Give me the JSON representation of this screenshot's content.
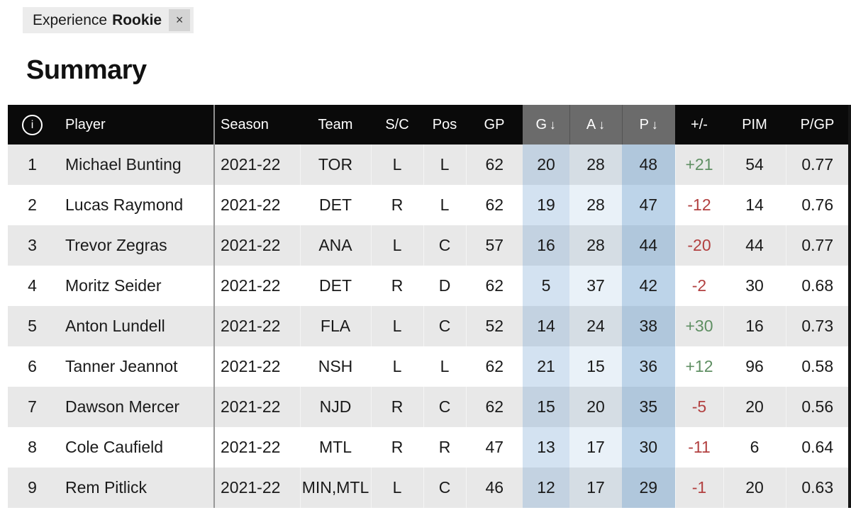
{
  "filter_chip": {
    "label": "Experience",
    "value": "Rookie",
    "close": "×"
  },
  "heading": "Summary",
  "icons": {
    "info": "i",
    "sort_desc": "↓",
    "close": "×"
  },
  "colors": {
    "header_bg": "#0a0a0a",
    "sorted_header_bg": "#6b6b6b",
    "row_alt_bg": "#e8e8e8",
    "highlight_blue": "#6ca0cf",
    "positive_green": "#5f8f63",
    "negative_red": "#b24040"
  },
  "table": {
    "columns": [
      {
        "id": "rank",
        "label": "",
        "sorted": false
      },
      {
        "id": "player",
        "label": "Player",
        "sorted": false
      },
      {
        "id": "season",
        "label": "Season",
        "sorted": false
      },
      {
        "id": "team",
        "label": "Team",
        "sorted": false
      },
      {
        "id": "sc",
        "label": "S/C",
        "sorted": false
      },
      {
        "id": "pos",
        "label": "Pos",
        "sorted": false
      },
      {
        "id": "gp",
        "label": "GP",
        "sorted": false
      },
      {
        "id": "g",
        "label": "G",
        "sorted": true
      },
      {
        "id": "a",
        "label": "A",
        "sorted": true
      },
      {
        "id": "p",
        "label": "P",
        "sorted": true
      },
      {
        "id": "pm",
        "label": "+/-",
        "sorted": false
      },
      {
        "id": "pim",
        "label": "PIM",
        "sorted": false
      },
      {
        "id": "pgp",
        "label": "P/GP",
        "sorted": false
      }
    ],
    "rows": [
      {
        "rank": "1",
        "player": "Michael Bunting",
        "season": "2021-22",
        "team": "TOR",
        "sc": "L",
        "pos": "L",
        "gp": "62",
        "g": "20",
        "a": "28",
        "p": "48",
        "pm": "+21",
        "pim": "54",
        "pgp": "0.77"
      },
      {
        "rank": "2",
        "player": "Lucas Raymond",
        "season": "2021-22",
        "team": "DET",
        "sc": "R",
        "pos": "L",
        "gp": "62",
        "g": "19",
        "a": "28",
        "p": "47",
        "pm": "-12",
        "pim": "14",
        "pgp": "0.76"
      },
      {
        "rank": "3",
        "player": "Trevor Zegras",
        "season": "2021-22",
        "team": "ANA",
        "sc": "L",
        "pos": "C",
        "gp": "57",
        "g": "16",
        "a": "28",
        "p": "44",
        "pm": "-20",
        "pim": "44",
        "pgp": "0.77"
      },
      {
        "rank": "4",
        "player": "Moritz Seider",
        "season": "2021-22",
        "team": "DET",
        "sc": "R",
        "pos": "D",
        "gp": "62",
        "g": "5",
        "a": "37",
        "p": "42",
        "pm": "-2",
        "pim": "30",
        "pgp": "0.68"
      },
      {
        "rank": "5",
        "player": "Anton Lundell",
        "season": "2021-22",
        "team": "FLA",
        "sc": "L",
        "pos": "C",
        "gp": "52",
        "g": "14",
        "a": "24",
        "p": "38",
        "pm": "+30",
        "pim": "16",
        "pgp": "0.73"
      },
      {
        "rank": "6",
        "player": "Tanner Jeannot",
        "season": "2021-22",
        "team": "NSH",
        "sc": "L",
        "pos": "L",
        "gp": "62",
        "g": "21",
        "a": "15",
        "p": "36",
        "pm": "+12",
        "pim": "96",
        "pgp": "0.58"
      },
      {
        "rank": "7",
        "player": "Dawson Mercer",
        "season": "2021-22",
        "team": "NJD",
        "sc": "R",
        "pos": "C",
        "gp": "62",
        "g": "15",
        "a": "20",
        "p": "35",
        "pm": "-5",
        "pim": "20",
        "pgp": "0.56"
      },
      {
        "rank": "8",
        "player": "Cole Caufield",
        "season": "2021-22",
        "team": "MTL",
        "sc": "R",
        "pos": "R",
        "gp": "47",
        "g": "13",
        "a": "17",
        "p": "30",
        "pm": "-11",
        "pim": "6",
        "pgp": "0.64"
      },
      {
        "rank": "9",
        "player": "Rem Pitlick",
        "season": "2021-22",
        "team": "MIN,MTL",
        "sc": "L",
        "pos": "C",
        "gp": "46",
        "g": "12",
        "a": "17",
        "p": "29",
        "pm": "-1",
        "pim": "20",
        "pgp": "0.63"
      }
    ]
  }
}
